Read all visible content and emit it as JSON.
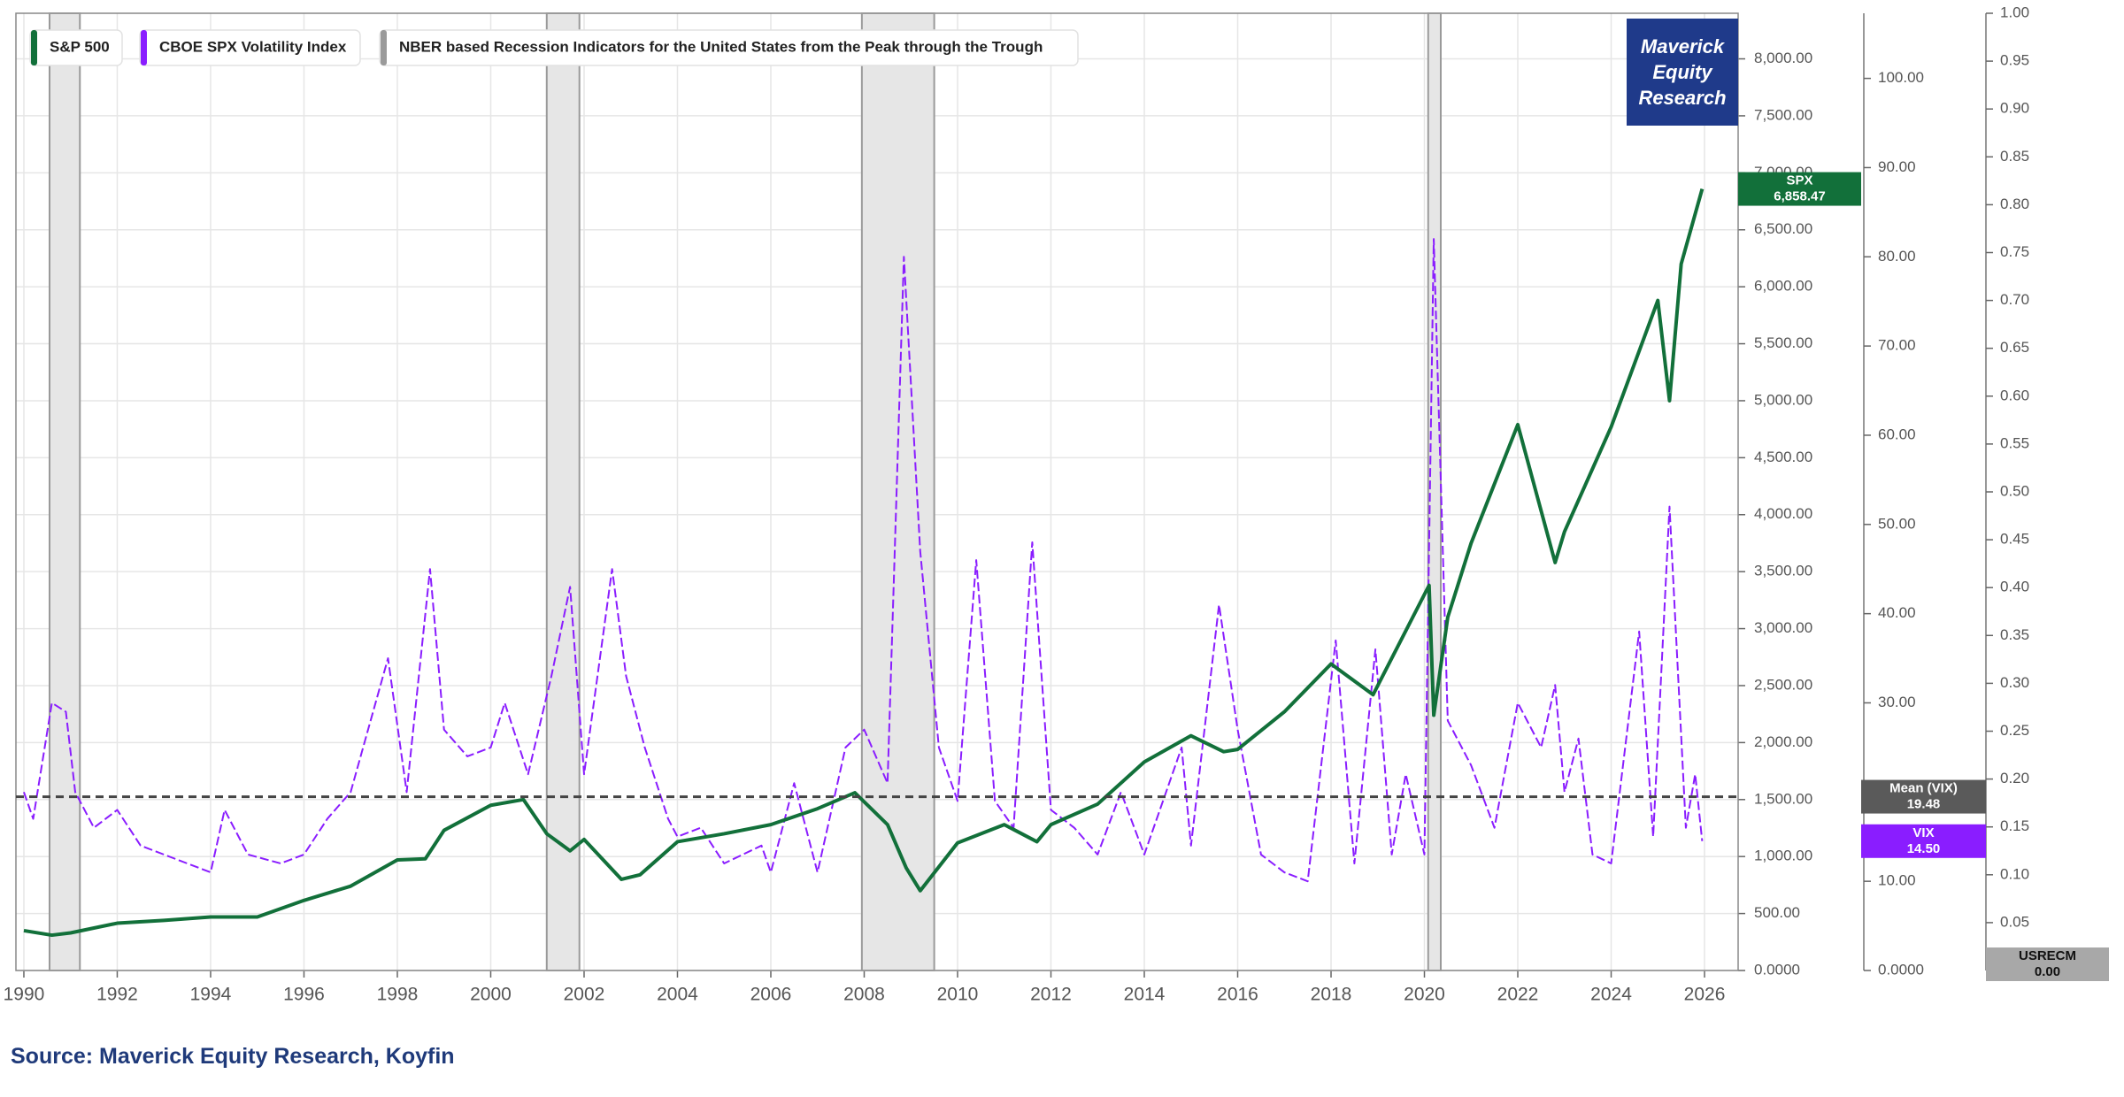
{
  "chart_data": {
    "type": "line",
    "grid": true,
    "legend": "upper left",
    "xlim": [
      1989.83,
      2026.72
    ],
    "xticks": [
      1990,
      1992,
      1994,
      1996,
      1998,
      2000,
      2002,
      2004,
      2006,
      2008,
      2010,
      2012,
      2014,
      2016,
      2018,
      2020,
      2022,
      2024,
      2026
    ],
    "ylim": [
      0,
      8400
    ],
    "yticks": [
      {
        "value": 0,
        "label": "0.0000"
      },
      {
        "value": 500,
        "label": "500.00"
      },
      {
        "value": 1000,
        "label": "1,000.00"
      },
      {
        "value": 1500,
        "label": "1,500.00"
      },
      {
        "value": 2000,
        "label": "2,000.00"
      },
      {
        "value": 2500,
        "label": "2,500.00"
      },
      {
        "value": 3000,
        "label": "3,000.00"
      },
      {
        "value": 3500,
        "label": "3,500.00"
      },
      {
        "value": 4000,
        "label": "4,000.00"
      },
      {
        "value": 4500,
        "label": "4,500.00"
      },
      {
        "value": 5000,
        "label": "5,000.00"
      },
      {
        "value": 5500,
        "label": "5,500.00"
      },
      {
        "value": 6000,
        "label": "6,000.00"
      },
      {
        "value": 6500,
        "label": "6,500.00"
      },
      {
        "value": 7000,
        "label": "7,000.00"
      },
      {
        "value": 7500,
        "label": "7,500.00"
      },
      {
        "value": 8000,
        "label": "8,000.00"
      }
    ],
    "y2lim": [
      0,
      107.3
    ],
    "y2ticks": [
      {
        "value": 0,
        "label": "0.0000"
      },
      {
        "value": 10,
        "label": "10.00"
      },
      {
        "value": 20,
        "label": "20.00"
      },
      {
        "value": 30,
        "label": "30.00"
      },
      {
        "value": 40,
        "label": "40.00"
      },
      {
        "value": 50,
        "label": "50.00"
      },
      {
        "value": 60,
        "label": "60.00"
      },
      {
        "value": 70,
        "label": "70.00"
      },
      {
        "value": 80,
        "label": "80.00"
      },
      {
        "value": 90,
        "label": "90.00"
      },
      {
        "value": 100,
        "label": "100.00"
      }
    ],
    "y3lim": [
      0,
      1.0
    ],
    "y3ticks": [
      0.05,
      {
        "value": 0.1,
        "label": "0.10"
      },
      0.15,
      {
        "value": 0.2,
        "label": "0.20"
      },
      0.25,
      {
        "value": 0.3,
        "label": "0.30"
      },
      0.35,
      {
        "value": 0.4,
        "label": "0.40"
      },
      0.45,
      {
        "value": 0.5,
        "label": "0.50"
      },
      0.55,
      {
        "value": 0.6,
        "label": "0.60"
      },
      0.65,
      {
        "value": 0.7,
        "label": "0.70"
      },
      0.75,
      {
        "value": 0.8,
        "label": "0.80"
      },
      0.85,
      {
        "value": 0.9,
        "label": "0.90"
      },
      0.95,
      {
        "value": 1,
        "label": "1.00"
      }
    ],
    "series": [
      {
        "name": "S&P 500",
        "color": "#12703a",
        "axis": "y",
        "tag": "SPX",
        "last_label": "6,858.47",
        "x": [
          1990.0,
          1990.6,
          1991.0,
          1992,
          1993,
          1994,
          1995,
          1996,
          1997,
          1998,
          1998.6,
          1999,
          2000,
          2000.7,
          2001.2,
          2001.7,
          2002,
          2002.8,
          2003.2,
          2004,
          2005,
          2006,
          2007,
          2007.8,
          2008.5,
          2008.9,
          2009.2,
          2010,
          2011,
          2011.7,
          2012,
          2013,
          2014,
          2015,
          2015.7,
          2016,
          2017,
          2018,
          2018.9,
          2019,
          2020.1,
          2020.2,
          2020.5,
          2021,
          2022,
          2022.8,
          2023,
          2024,
          2025,
          2025.25,
          2025.5,
          2025.95
        ],
        "values": [
          350,
          310,
          330,
          415,
          440,
          470,
          470,
          615,
          740,
          970,
          980,
          1230,
          1450,
          1500,
          1200,
          1050,
          1150,
          800,
          840,
          1130,
          1200,
          1280,
          1420,
          1560,
          1280,
          900,
          700,
          1120,
          1280,
          1130,
          1280,
          1460,
          1830,
          2060,
          1920,
          1940,
          2270,
          2690,
          2420,
          2500,
          3380,
          2240,
          3100,
          3750,
          4790,
          3580,
          3850,
          4770,
          5880,
          5000,
          6200,
          6858.47
        ]
      },
      {
        "name": "CBOE SPX Volatility Index",
        "color": "#8a1dff",
        "axis": "y2",
        "dash": true,
        "tag": "VIX",
        "last_label": "14.50",
        "x": [
          1990.0,
          1990.2,
          1990.6,
          1990.9,
          1991.1,
          1991.5,
          1992,
          1992.5,
          1993,
          1993.5,
          1994,
          1994.3,
          1994.8,
          1995.5,
          1996,
          1996.5,
          1997,
          1997.8,
          1998.2,
          1998.7,
          1999,
          1999.5,
          2000,
          2000.3,
          2000.8,
          2001.3,
          2001.7,
          2002,
          2002.6,
          2002.9,
          2003.3,
          2003.8,
          2004,
          2004.5,
          2005,
          2005.8,
          2006,
          2006.5,
          2007,
          2007.6,
          2008,
          2008.5,
          2008.85,
          2009.2,
          2009.6,
          2010,
          2010.4,
          2010.8,
          2011.2,
          2011.6,
          2012,
          2012.5,
          2013,
          2013.5,
          2014,
          2014.8,
          2015,
          2015.6,
          2016,
          2016.5,
          2017,
          2017.5,
          2018.1,
          2018.5,
          2018.95,
          2019.3,
          2019.6,
          2020.0,
          2020.2,
          2020.5,
          2021,
          2021.5,
          2022,
          2022.5,
          2022.8,
          2023,
          2023.3,
          2023.6,
          2024,
          2024.6,
          2024.9,
          2025.25,
          2025.6,
          2025.8,
          2025.95
        ],
        "values": [
          20,
          17,
          30,
          29,
          20,
          16,
          18,
          14,
          13,
          12,
          11,
          18,
          13,
          12,
          13,
          17,
          20,
          35,
          20,
          45,
          27,
          24,
          25,
          30,
          22,
          33,
          43,
          22,
          45,
          33,
          25,
          17,
          15,
          16,
          12,
          14,
          11,
          21,
          11,
          25,
          27,
          21,
          80,
          47,
          25,
          19,
          46,
          19,
          16,
          48,
          18,
          16,
          13,
          20,
          13,
          25,
          14,
          41,
          27,
          13,
          11,
          10,
          37,
          12,
          36,
          13,
          22,
          13,
          82,
          28,
          23,
          16,
          30,
          25,
          32,
          20,
          26,
          13,
          12,
          38,
          15,
          52,
          16,
          22,
          14.5
        ]
      },
      {
        "name": "NBER based Recession Indicators for the United States from the Peak through the Trough",
        "color": "#9a9a9a",
        "axis": "y3",
        "tag": "USRECM",
        "last_value": 0,
        "last_label": "0.00",
        "x_start": [
          1990.55,
          2001.2,
          2007.95,
          2020.08
        ],
        "x_end": [
          1991.2,
          2001.9,
          2009.5,
          2020.35
        ],
        "values": [
          1,
          1,
          1,
          1
        ]
      }
    ],
    "mean_line": {
      "name": "Mean (VIX)",
      "axis": "y2",
      "value": 19.48,
      "label": "19.48"
    },
    "logo": "Maverick Equity Research",
    "source": "Source: Maverick Equity Research, Koyfin"
  }
}
